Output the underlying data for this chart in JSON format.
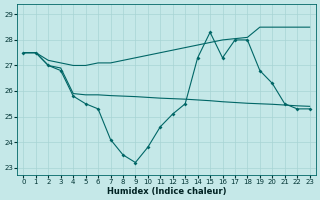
{
  "xlabel": "Humidex (Indice chaleur)",
  "xlim": [
    -0.5,
    23.5
  ],
  "ylim": [
    22.7,
    29.4
  ],
  "yticks": [
    23,
    24,
    25,
    26,
    27,
    28,
    29
  ],
  "xticks": [
    0,
    1,
    2,
    3,
    4,
    5,
    6,
    7,
    8,
    9,
    10,
    11,
    12,
    13,
    14,
    15,
    16,
    17,
    18,
    19,
    20,
    21,
    22,
    23
  ],
  "background_color": "#c5e8e8",
  "grid_color": "#a8d4d4",
  "line_color": "#006666",
  "line1_x": [
    0,
    1,
    2,
    3,
    4,
    5,
    6,
    7,
    8,
    9,
    10,
    11,
    12,
    13,
    14,
    15,
    16,
    17,
    18,
    19,
    20,
    21,
    22,
    23
  ],
  "line1_y": [
    27.5,
    27.5,
    27.0,
    26.8,
    25.8,
    25.5,
    25.3,
    24.1,
    23.5,
    23.2,
    23.8,
    24.6,
    25.1,
    25.5,
    27.3,
    28.3,
    27.3,
    28.0,
    28.0,
    26.8,
    26.3,
    25.5,
    25.3,
    25.3
  ],
  "line2_x": [
    0,
    1,
    2,
    3,
    4,
    5,
    6,
    7,
    8,
    9,
    10,
    11,
    12,
    13,
    14,
    15,
    16,
    17,
    18,
    19,
    20,
    21,
    22,
    23
  ],
  "line2_y": [
    27.5,
    27.5,
    27.2,
    27.1,
    27.0,
    27.0,
    27.1,
    27.1,
    27.2,
    27.3,
    27.4,
    27.5,
    27.6,
    27.7,
    27.8,
    27.9,
    28.0,
    28.05,
    28.1,
    28.5,
    28.5,
    28.5,
    28.5,
    28.5
  ],
  "line3_x": [
    0,
    1,
    2,
    3,
    4,
    5,
    6,
    7,
    8,
    9,
    10,
    11,
    12,
    13,
    14,
    15,
    16,
    17,
    18,
    19,
    20,
    21,
    22,
    23
  ],
  "line3_y": [
    27.5,
    27.5,
    27.0,
    26.9,
    25.9,
    25.85,
    25.85,
    25.82,
    25.8,
    25.78,
    25.75,
    25.72,
    25.7,
    25.68,
    25.65,
    25.62,
    25.58,
    25.55,
    25.52,
    25.5,
    25.48,
    25.45,
    25.42,
    25.4
  ]
}
